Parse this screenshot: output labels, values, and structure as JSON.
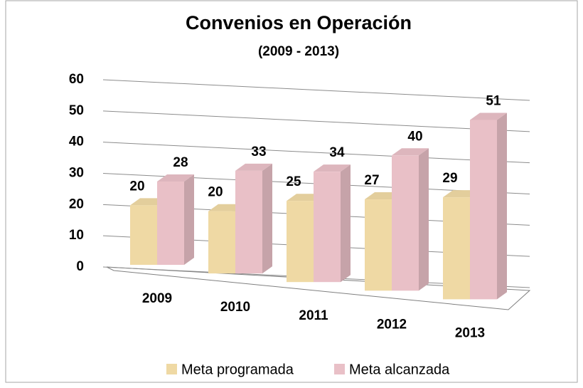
{
  "chart_data": {
    "type": "bar3d",
    "title": "Convenios en Operación",
    "subtitle": "(2009 - 2013)",
    "categories": [
      "2009",
      "2010",
      "2011",
      "2012",
      "2013"
    ],
    "series": [
      {
        "name": "Meta programada",
        "color": "#efd9a4",
        "values": [
          20,
          20,
          25,
          27,
          29
        ]
      },
      {
        "name": "Meta alcanzada",
        "color": "#e9c0c7",
        "values": [
          28,
          33,
          34,
          40,
          51
        ]
      }
    ],
    "ylim": [
      0,
      60
    ],
    "yticks": [
      0,
      10,
      20,
      30,
      40,
      50,
      60
    ],
    "grid": true,
    "legend": "bottom"
  }
}
